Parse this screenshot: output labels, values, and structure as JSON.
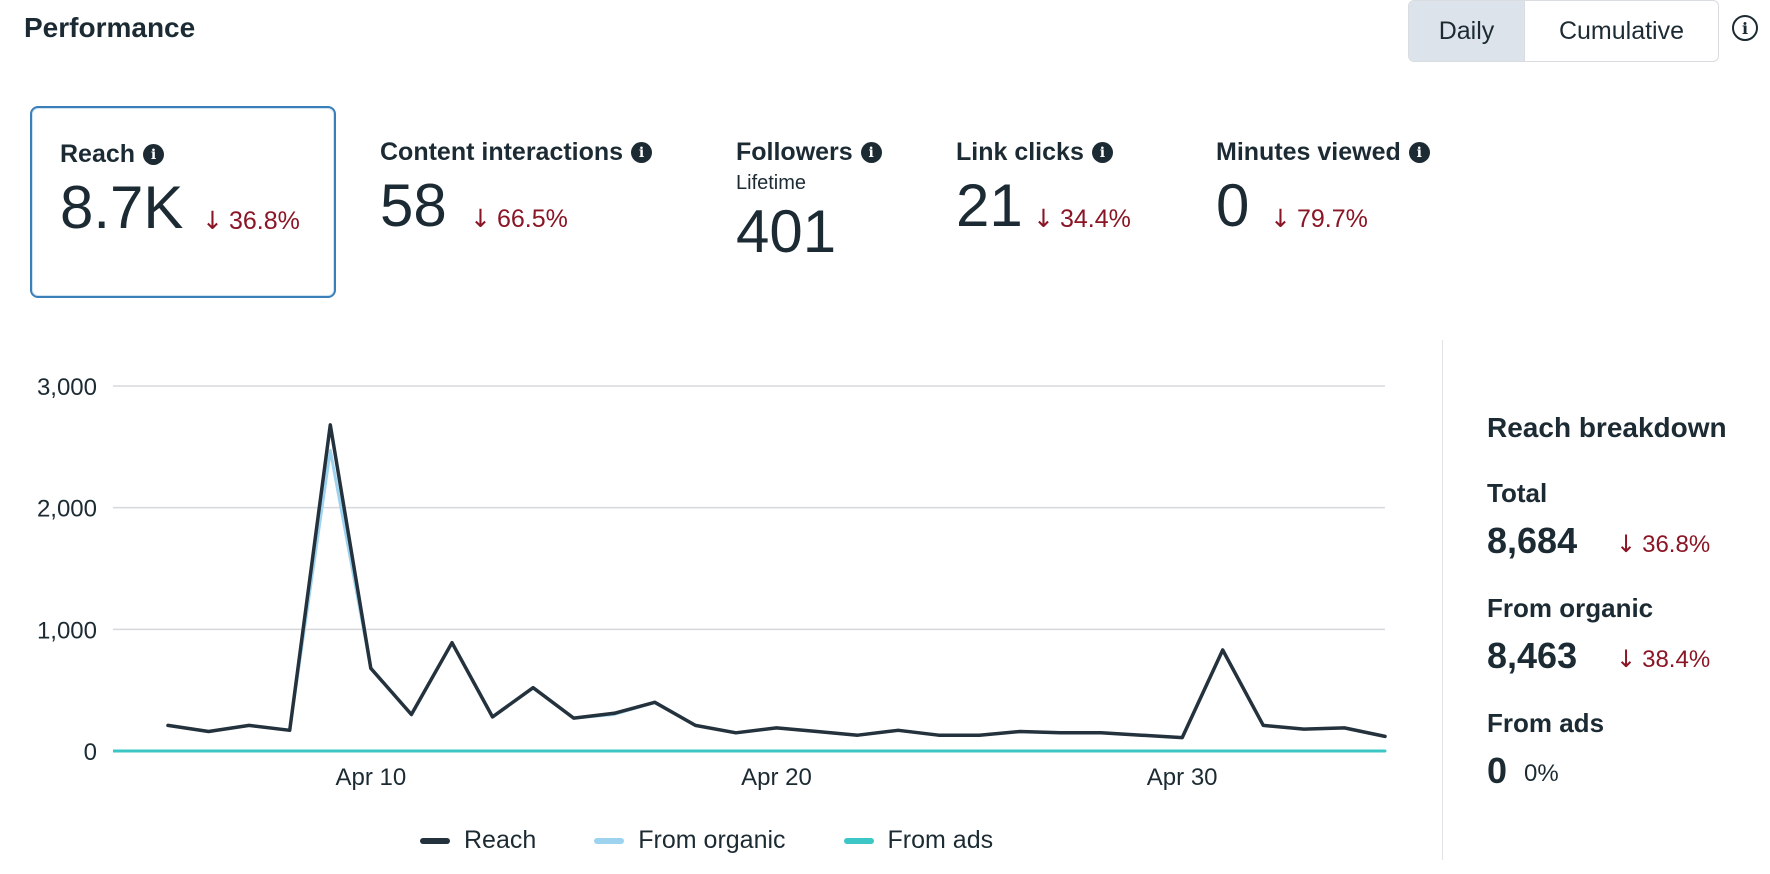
{
  "header": {
    "title": "Performance",
    "toggle": {
      "daily": "Daily",
      "cumulative": "Cumulative",
      "selected": "Daily"
    },
    "info_icon": "info-circle-icon"
  },
  "metrics": [
    {
      "label": "Reach",
      "value": "8.7K",
      "change": "36.8%",
      "direction": "down",
      "selected": true
    },
    {
      "label": "Content interactions",
      "value": "58",
      "change": "66.5%",
      "direction": "down"
    },
    {
      "label": "Followers",
      "sub": "Lifetime",
      "value": "401"
    },
    {
      "label": "Link clicks",
      "value": "21",
      "change": "34.4%",
      "direction": "down"
    },
    {
      "label": "Minutes viewed",
      "value": "0",
      "change": "79.7%",
      "direction": "down"
    }
  ],
  "breakdown": {
    "title": "Reach breakdown",
    "items": [
      {
        "label": "Total",
        "value": "8,684",
        "change": "36.8%",
        "direction": "down"
      },
      {
        "label": "From organic",
        "value": "8,463",
        "change": "38.4%",
        "direction": "down"
      },
      {
        "label": "From ads",
        "value": "0",
        "change": "0%",
        "direction": "none"
      }
    ]
  },
  "colors": {
    "reach": "#24323d",
    "organic": "#9ed3f0",
    "ads": "#3cc6c6",
    "negative": "#8a1525",
    "selected_border": "#3b7fb8"
  },
  "chart_data": {
    "type": "line",
    "x": [
      "Apr 5",
      "Apr 6",
      "Apr 7",
      "Apr 8",
      "Apr 9",
      "Apr 10",
      "Apr 11",
      "Apr 12",
      "Apr 13",
      "Apr 14",
      "Apr 15",
      "Apr 16",
      "Apr 17",
      "Apr 18",
      "Apr 19",
      "Apr 20",
      "Apr 21",
      "Apr 22",
      "Apr 23",
      "Apr 24",
      "Apr 25",
      "Apr 26",
      "Apr 27",
      "Apr 28",
      "Apr 29",
      "Apr 30",
      "May 1",
      "May 2",
      "May 3",
      "May 4",
      "May 5"
    ],
    "x_tick_labels": [
      "Apr 10",
      "Apr 20",
      "Apr 30"
    ],
    "y_ticks": [
      "0",
      "1,000",
      "2,000",
      "3,000"
    ],
    "ylim": [
      0,
      3000
    ],
    "grid": true,
    "legend_position": "bottom",
    "series": [
      {
        "name": "Reach",
        "values": [
          210,
          160,
          210,
          170,
          2680,
          680,
          300,
          890,
          280,
          520,
          270,
          310,
          400,
          210,
          150,
          190,
          160,
          130,
          170,
          130,
          130,
          160,
          150,
          150,
          130,
          110,
          830,
          210,
          180,
          190,
          120
        ]
      },
      {
        "name": "From organic",
        "values": [
          210,
          160,
          210,
          170,
          2470,
          680,
          300,
          890,
          280,
          520,
          270,
          300,
          400,
          210,
          150,
          190,
          160,
          130,
          170,
          130,
          130,
          160,
          150,
          150,
          130,
          110,
          830,
          210,
          180,
          190,
          120
        ]
      },
      {
        "name": "From ads",
        "values": [
          0,
          0,
          0,
          0,
          0,
          0,
          0,
          0,
          0,
          0,
          0,
          0,
          0,
          0,
          0,
          0,
          0,
          0,
          0,
          0,
          0,
          0,
          0,
          0,
          0,
          0,
          0,
          0,
          0,
          0,
          0
        ]
      }
    ]
  }
}
